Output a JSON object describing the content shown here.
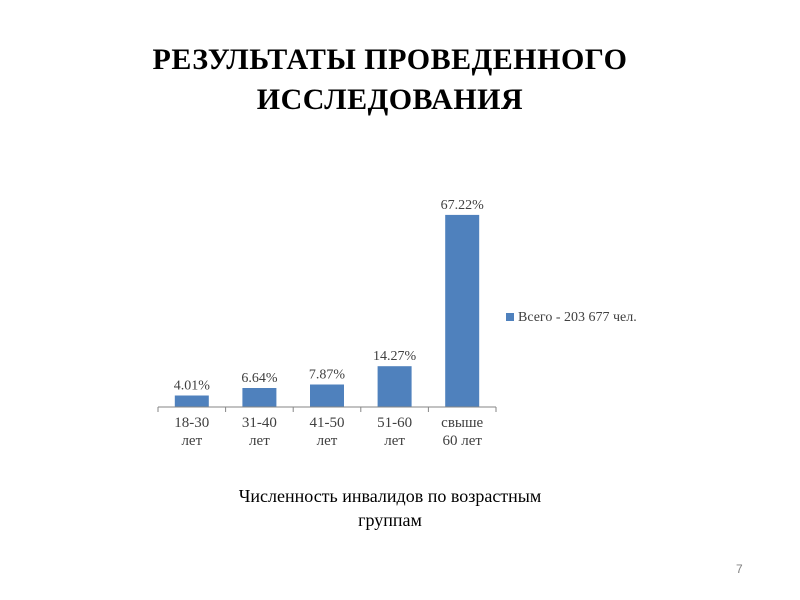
{
  "slide": {
    "title_line1": "РЕЗУЛЬТАТЫ ПРОВЕДЕННОГО",
    "title_line2": "ИССЛЕДОВАНИЯ",
    "caption_line1": "Численность инвалидов по возрастным",
    "caption_line2": "группам",
    "page_number": "7"
  },
  "chart_data": {
    "type": "bar",
    "categories": [
      [
        "18-30",
        "лет"
      ],
      [
        "31-40",
        "лет"
      ],
      [
        "41-50",
        "лет"
      ],
      [
        "51-60",
        "лет"
      ],
      [
        "свыше",
        "60 лет"
      ]
    ],
    "series": [
      {
        "name": "Всего - 203 677 чел.",
        "values": [
          4.01,
          6.64,
          7.87,
          14.27,
          67.22
        ],
        "labels": [
          "4.01%",
          "6.64%",
          "7.87%",
          "14.27%",
          "67.22%"
        ],
        "color": "#4f81bd"
      }
    ],
    "ylim": [
      0,
      70
    ],
    "grid": false,
    "legend": "right",
    "axis_color": "#868686"
  }
}
